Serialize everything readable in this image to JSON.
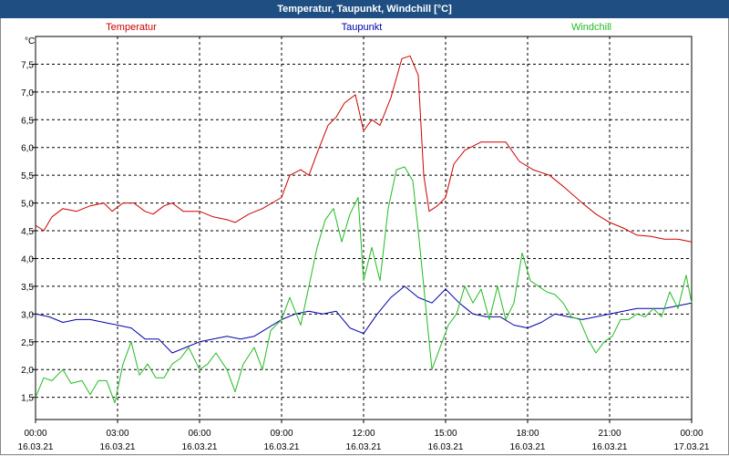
{
  "window": {
    "title": "Temperatur, Taupunkt, Windchill [°C]"
  },
  "colors": {
    "temperature": "#cc0000",
    "dewpoint": "#0000aa",
    "windchill": "#22bb22",
    "title_bar": "#1f4f82"
  },
  "chart_data": {
    "type": "line",
    "title": "Temperatur, Taupunkt, Windchill [°C]",
    "ylabel": "°C",
    "xlabel": "",
    "ylim": [
      1.1,
      8.0
    ],
    "xlim": [
      0,
      24
    ],
    "grid": true,
    "y_ticks": [
      1.5,
      2.0,
      2.5,
      3.0,
      3.5,
      4.0,
      4.5,
      5.0,
      5.5,
      6.0,
      6.5,
      7.0,
      7.5
    ],
    "y_tick_labels": [
      "1,5",
      "2,0",
      "2,5",
      "3,0",
      "3,5",
      "4,0",
      "4,5",
      "5,0",
      "5,5",
      "6,0",
      "6,5",
      "7,0",
      "7,5"
    ],
    "x_ticks": [
      0,
      3,
      6,
      9,
      12,
      15,
      18,
      21,
      24
    ],
    "x_tick_labels": [
      "00:00",
      "03:00",
      "06:00",
      "09:00",
      "12:00",
      "15:00",
      "18:00",
      "21:00",
      "00:00"
    ],
    "x_date_labels": [
      "16.03.21",
      "16.03.21",
      "16.03.21",
      "16.03.21",
      "16.03.21",
      "16.03.21",
      "16.03.21",
      "16.03.21",
      "17.03.21"
    ],
    "series": [
      {
        "name": "Temperatur",
        "color": "#cc0000",
        "x": [
          0,
          0.3,
          0.6,
          1.0,
          1.5,
          2.0,
          2.5,
          2.8,
          3.2,
          3.6,
          4.0,
          4.3,
          4.7,
          5.0,
          5.4,
          6.0,
          6.5,
          7.0,
          7.3,
          7.8,
          8.3,
          9.0,
          9.3,
          9.7,
          10.0,
          10.3,
          10.7,
          11.0,
          11.3,
          11.7,
          12.0,
          12.3,
          12.6,
          13.0,
          13.4,
          13.7,
          14.0,
          14.2,
          14.4,
          14.7,
          15.0,
          15.3,
          15.7,
          16.3,
          16.8,
          17.2,
          17.7,
          18.2,
          18.8,
          19.3,
          20.0,
          20.5,
          21.0,
          21.5,
          22.0,
          22.5,
          23.0,
          23.5,
          24.0
        ],
        "values": [
          4.6,
          4.5,
          4.75,
          4.9,
          4.85,
          4.95,
          5.0,
          4.85,
          5.0,
          5.0,
          4.85,
          4.8,
          4.95,
          5.0,
          4.85,
          4.85,
          4.75,
          4.7,
          4.65,
          4.8,
          4.9,
          5.1,
          5.5,
          5.6,
          5.5,
          5.9,
          6.4,
          6.55,
          6.8,
          6.95,
          6.3,
          6.5,
          6.4,
          6.9,
          7.6,
          7.65,
          7.3,
          5.5,
          4.85,
          4.95,
          5.1,
          5.7,
          5.95,
          6.1,
          6.1,
          6.1,
          5.75,
          5.6,
          5.5,
          5.3,
          5.0,
          4.8,
          4.65,
          4.55,
          4.42,
          4.4,
          4.35,
          4.35,
          4.3
        ]
      },
      {
        "name": "Taupunkt",
        "color": "#0000aa",
        "x": [
          0,
          0.5,
          1.0,
          1.5,
          2.0,
          2.5,
          3.0,
          3.5,
          4.0,
          4.5,
          5.0,
          5.5,
          6.0,
          6.5,
          7.0,
          7.5,
          8.0,
          8.5,
          9.0,
          9.5,
          10.0,
          10.5,
          11.0,
          11.5,
          12.0,
          12.5,
          13.0,
          13.5,
          14.0,
          14.5,
          15.0,
          15.5,
          16.0,
          16.5,
          17.0,
          17.5,
          18.0,
          18.5,
          19.0,
          19.5,
          20.0,
          20.5,
          21.0,
          21.5,
          22.0,
          22.5,
          23.0,
          23.5,
          24.0
        ],
        "values": [
          3.0,
          2.95,
          2.85,
          2.9,
          2.9,
          2.85,
          2.8,
          2.75,
          2.55,
          2.55,
          2.3,
          2.4,
          2.5,
          2.55,
          2.6,
          2.55,
          2.6,
          2.75,
          2.9,
          3.0,
          3.05,
          3.0,
          3.05,
          2.75,
          2.65,
          3.0,
          3.3,
          3.5,
          3.3,
          3.2,
          3.45,
          3.2,
          3.0,
          2.95,
          2.95,
          2.8,
          2.75,
          2.85,
          3.0,
          2.95,
          2.9,
          2.95,
          3.0,
          3.05,
          3.1,
          3.1,
          3.1,
          3.15,
          3.2
        ]
      },
      {
        "name": "Windchill",
        "color": "#22bb22",
        "x": [
          0,
          0.3,
          0.6,
          1.0,
          1.3,
          1.7,
          2.0,
          2.3,
          2.6,
          2.9,
          3.2,
          3.5,
          3.8,
          4.1,
          4.4,
          4.7,
          5.0,
          5.3,
          5.6,
          6.0,
          6.3,
          6.6,
          7.0,
          7.3,
          7.6,
          8.0,
          8.3,
          8.6,
          9.0,
          9.3,
          9.7,
          10.0,
          10.3,
          10.6,
          10.9,
          11.2,
          11.5,
          11.8,
          12.0,
          12.3,
          12.6,
          12.9,
          13.2,
          13.5,
          13.8,
          14.0,
          14.2,
          14.5,
          14.8,
          15.1,
          15.4,
          15.7,
          16.0,
          16.3,
          16.6,
          16.9,
          17.2,
          17.5,
          17.8,
          18.1,
          18.4,
          18.7,
          19.0,
          19.3,
          19.6,
          19.9,
          20.2,
          20.5,
          20.8,
          21.1,
          21.4,
          21.7,
          22.0,
          22.3,
          22.6,
          22.9,
          23.2,
          23.5,
          23.8,
          24.0
        ],
        "values": [
          1.5,
          1.85,
          1.8,
          2.0,
          1.75,
          1.8,
          1.55,
          1.8,
          1.8,
          1.4,
          2.1,
          2.5,
          1.9,
          2.1,
          1.85,
          1.85,
          2.1,
          2.2,
          2.4,
          2.0,
          2.1,
          2.3,
          2.0,
          1.6,
          2.1,
          2.4,
          2.0,
          2.7,
          2.9,
          3.3,
          2.8,
          3.5,
          4.2,
          4.7,
          4.9,
          4.3,
          4.8,
          5.1,
          3.6,
          4.2,
          3.6,
          4.9,
          5.6,
          5.65,
          5.4,
          4.5,
          3.5,
          2.0,
          2.4,
          2.8,
          3.0,
          3.5,
          3.2,
          3.45,
          2.9,
          3.5,
          2.9,
          3.2,
          4.1,
          3.6,
          3.5,
          3.4,
          3.35,
          3.2,
          2.95,
          2.9,
          2.55,
          2.3,
          2.5,
          2.6,
          2.9,
          2.9,
          3.0,
          2.95,
          3.1,
          2.95,
          3.4,
          3.1,
          3.7,
          3.2
        ]
      }
    ]
  }
}
